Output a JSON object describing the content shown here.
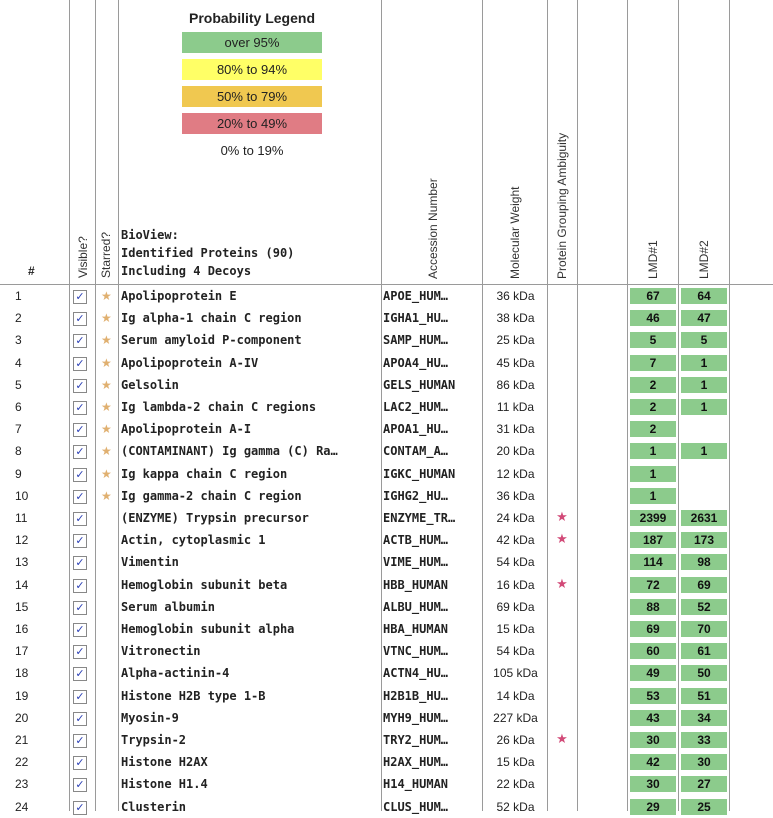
{
  "legend": {
    "title": "Probability Legend",
    "items": [
      {
        "label": "over 95%",
        "color": "#8ccb8c"
      },
      {
        "label": "80% to 94%",
        "color": "#ffff66"
      },
      {
        "label": "50% to 79%",
        "color": "#f0c850"
      },
      {
        "label": "20% to 49%",
        "color": "#e07c84"
      },
      {
        "label": "0% to 19%",
        "color": "#ffffff"
      }
    ]
  },
  "header": {
    "index": "#",
    "visible": "Visible?",
    "starred": "Starred?",
    "bioview_line1": "BioView:",
    "bioview_line2": "Identified Proteins (90)",
    "bioview_line3": "Including 4 Decoys",
    "accession": "Accession Number",
    "mw": "Molecular Weight",
    "ambiguity": "Protein Grouping Ambiguity",
    "lmd1": "LMD#1",
    "lmd2": "LMD#2"
  },
  "rows": [
    {
      "n": "1",
      "visible": "✓",
      "star": "★",
      "name": "Apolipoprotein E",
      "acc": "APOE_HUM…",
      "mw": "36 kDa",
      "amb": "",
      "lmd1": "67",
      "lmd2": "64"
    },
    {
      "n": "2",
      "visible": "✓",
      "star": "★",
      "name": "Ig alpha-1 chain C region",
      "acc": "IGHA1_HU…",
      "mw": "38 kDa",
      "amb": "",
      "lmd1": "46",
      "lmd2": "47"
    },
    {
      "n": "3",
      "visible": "✓",
      "star": "★",
      "name": "Serum amyloid P-component",
      "acc": "SAMP_HUM…",
      "mw": "25 kDa",
      "amb": "",
      "lmd1": "5",
      "lmd2": "5"
    },
    {
      "n": "4",
      "visible": "✓",
      "star": "★",
      "name": "Apolipoprotein A-IV",
      "acc": "APOA4_HU…",
      "mw": "45 kDa",
      "amb": "",
      "lmd1": "7",
      "lmd2": "1"
    },
    {
      "n": "5",
      "visible": "✓",
      "star": "★",
      "name": "Gelsolin",
      "acc": "GELS_HUMAN",
      "mw": "86 kDa",
      "amb": "",
      "lmd1": "2",
      "lmd2": "1"
    },
    {
      "n": "6",
      "visible": "✓",
      "star": "★",
      "name": "Ig lambda-2 chain C regions",
      "acc": "LAC2_HUM…",
      "mw": "11 kDa",
      "amb": "",
      "lmd1": "2",
      "lmd2": "1"
    },
    {
      "n": "7",
      "visible": "✓",
      "star": "★",
      "name": "Apolipoprotein A-I",
      "acc": "APOA1_HU…",
      "mw": "31 kDa",
      "amb": "",
      "lmd1": "2",
      "lmd2": ""
    },
    {
      "n": "8",
      "visible": "✓",
      "star": "★",
      "name": "(CONTAMINANT) Ig gamma (C) Ra…",
      "acc": "CONTAM_A…",
      "mw": "20 kDa",
      "amb": "",
      "lmd1": "1",
      "lmd2": "1"
    },
    {
      "n": "9",
      "visible": "✓",
      "star": "★",
      "name": "Ig kappa chain C region",
      "acc": "IGKC_HUMAN",
      "mw": "12 kDa",
      "amb": "",
      "lmd1": "1",
      "lmd2": ""
    },
    {
      "n": "10",
      "visible": "✓",
      "star": "★",
      "name": "Ig gamma-2 chain C region",
      "acc": "IGHG2_HU…",
      "mw": "36 kDa",
      "amb": "",
      "lmd1": "1",
      "lmd2": ""
    },
    {
      "n": "11",
      "visible": "✓",
      "star": "",
      "name": "(ENZYME) Trypsin precursor",
      "acc": "ENZYME_TR…",
      "mw": "24 kDa",
      "amb": "★",
      "lmd1": "2399",
      "lmd2": "2631"
    },
    {
      "n": "12",
      "visible": "✓",
      "star": "",
      "name": "Actin, cytoplasmic 1",
      "acc": "ACTB_HUM…",
      "mw": "42 kDa",
      "amb": "★",
      "lmd1": "187",
      "lmd2": "173"
    },
    {
      "n": "13",
      "visible": "✓",
      "star": "",
      "name": "Vimentin",
      "acc": "VIME_HUM…",
      "mw": "54 kDa",
      "amb": "",
      "lmd1": "114",
      "lmd2": "98"
    },
    {
      "n": "14",
      "visible": "✓",
      "star": "",
      "name": "Hemoglobin subunit beta",
      "acc": "HBB_HUMAN",
      "mw": "16 kDa",
      "amb": "★",
      "lmd1": "72",
      "lmd2": "69"
    },
    {
      "n": "15",
      "visible": "✓",
      "star": "",
      "name": "Serum albumin",
      "acc": "ALBU_HUM…",
      "mw": "69 kDa",
      "amb": "",
      "lmd1": "88",
      "lmd2": "52"
    },
    {
      "n": "16",
      "visible": "✓",
      "star": "",
      "name": "Hemoglobin subunit alpha",
      "acc": "HBA_HUMAN",
      "mw": "15 kDa",
      "amb": "",
      "lmd1": "69",
      "lmd2": "70"
    },
    {
      "n": "17",
      "visible": "✓",
      "star": "",
      "name": "Vitronectin",
      "acc": "VTNC_HUM…",
      "mw": "54 kDa",
      "amb": "",
      "lmd1": "60",
      "lmd2": "61"
    },
    {
      "n": "18",
      "visible": "✓",
      "star": "",
      "name": "Alpha-actinin-4",
      "acc": "ACTN4_HU…",
      "mw": "105 kDa",
      "amb": "",
      "lmd1": "49",
      "lmd2": "50"
    },
    {
      "n": "19",
      "visible": "✓",
      "star": "",
      "name": "Histone H2B type 1-B",
      "acc": "H2B1B_HU…",
      "mw": "14 kDa",
      "amb": "",
      "lmd1": "53",
      "lmd2": "51"
    },
    {
      "n": "20",
      "visible": "✓",
      "star": "",
      "name": "Myosin-9",
      "acc": "MYH9_HUM…",
      "mw": "227 kDa",
      "amb": "",
      "lmd1": "43",
      "lmd2": "34"
    },
    {
      "n": "21",
      "visible": "✓",
      "star": "",
      "name": "Trypsin-2",
      "acc": "TRY2_HUM…",
      "mw": "26 kDa",
      "amb": "★",
      "lmd1": "30",
      "lmd2": "33"
    },
    {
      "n": "22",
      "visible": "✓",
      "star": "",
      "name": "Histone H2AX",
      "acc": "H2AX_HUM…",
      "mw": "15 kDa",
      "amb": "",
      "lmd1": "42",
      "lmd2": "30"
    },
    {
      "n": "23",
      "visible": "✓",
      "star": "",
      "name": "Histone H1.4",
      "acc": "H14_HUMAN",
      "mw": "22 kDa",
      "amb": "",
      "lmd1": "30",
      "lmd2": "27"
    },
    {
      "n": "24",
      "visible": "✓",
      "star": "",
      "name": "Clusterin",
      "acc": "CLUS_HUM…",
      "mw": "52 kDa",
      "amb": "",
      "lmd1": "29",
      "lmd2": "25"
    }
  ]
}
